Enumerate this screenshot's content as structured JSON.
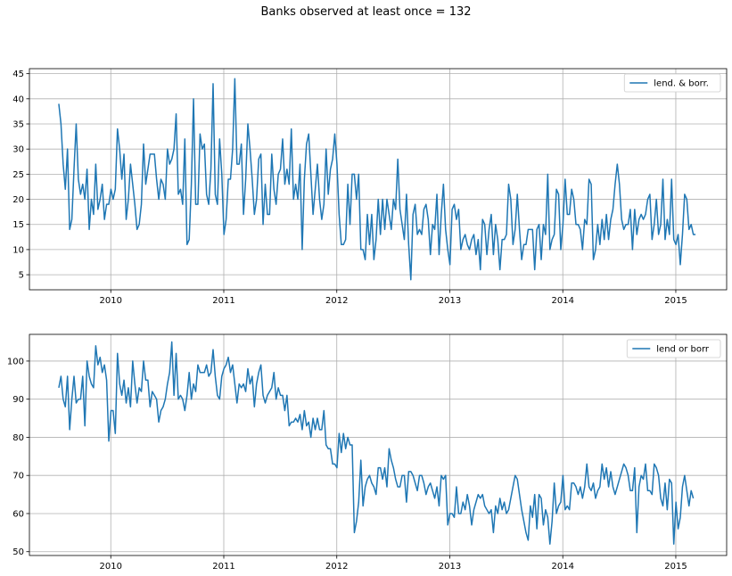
{
  "figure": {
    "suptitle": "Banks observed at least once = 132"
  },
  "colors": {
    "series": "#1f77b4"
  },
  "chart_data": [
    {
      "type": "line",
      "legend": "lend. & borr.",
      "legend_loc": "upper right",
      "grid": true,
      "x_start": 2009.54,
      "x_step": 0.01923,
      "xlim": [
        2009.28,
        2015.45
      ],
      "ylim": [
        2.0,
        46.0
      ],
      "xticks": [
        2010,
        2011,
        2012,
        2013,
        2014,
        2015
      ],
      "xtick_labels": [
        "2010",
        "2011",
        "2012",
        "2013",
        "2014",
        "2015"
      ],
      "yticks": [
        5,
        10,
        15,
        20,
        25,
        30,
        35,
        40,
        45
      ],
      "ytick_labels": [
        "5",
        "10",
        "15",
        "20",
        "25",
        "30",
        "35",
        "40",
        "45"
      ],
      "values": [
        39,
        35,
        27,
        22,
        30,
        14,
        16,
        26,
        35,
        24,
        21,
        23,
        20,
        26,
        14,
        20,
        17,
        27,
        18,
        20,
        23,
        16,
        19,
        19,
        22,
        20,
        22,
        34,
        30,
        24,
        29,
        16,
        20,
        27,
        23,
        19,
        14,
        15,
        19,
        31,
        23,
        26,
        29,
        29,
        29,
        24,
        20,
        24,
        23,
        20,
        30,
        27,
        28,
        30,
        37,
        21,
        22,
        19,
        32,
        11,
        12,
        23,
        40,
        19,
        19,
        33,
        30,
        31,
        21,
        19,
        26,
        43,
        21,
        19,
        32,
        25,
        13,
        16,
        24,
        24,
        30,
        44,
        27,
        27,
        31,
        17,
        24,
        35,
        30,
        24,
        17,
        20,
        28,
        29,
        15,
        23,
        17,
        17,
        29,
        22,
        19,
        25,
        26,
        32,
        23,
        26,
        23,
        34,
        20,
        23,
        20,
        27,
        10,
        24,
        31,
        33,
        25,
        17,
        22,
        27,
        20,
        16,
        19,
        30,
        21,
        26,
        28,
        33,
        27,
        17,
        11,
        11,
        12,
        23,
        15,
        25,
        25,
        20,
        25,
        10,
        10,
        8,
        17,
        11,
        17,
        8,
        12,
        20,
        13,
        20,
        14,
        20,
        17,
        14,
        20,
        18,
        28,
        18,
        15,
        12,
        21,
        11,
        4,
        17,
        19,
        13,
        14,
        13,
        18,
        19,
        16,
        9,
        15,
        14,
        21,
        9,
        17,
        23,
        14,
        10,
        7,
        18,
        19,
        16,
        18,
        10,
        12,
        13,
        11,
        10,
        12,
        13,
        9,
        12,
        6,
        16,
        15,
        9,
        14,
        17,
        9,
        15,
        12,
        6,
        12,
        12,
        13,
        23,
        20,
        11,
        14,
        21,
        14,
        8,
        11,
        11,
        14,
        14,
        14,
        6,
        14,
        15,
        8,
        15,
        13,
        25,
        10,
        12,
        13,
        22,
        21,
        10,
        15,
        24,
        17,
        17,
        22,
        20,
        15,
        15,
        14,
        10,
        16,
        15,
        24,
        23,
        8,
        10,
        15,
        11,
        16,
        12,
        17,
        12,
        16,
        18,
        23,
        27,
        23,
        16,
        14,
        15,
        15,
        18,
        10,
        18,
        13,
        16,
        17,
        16,
        17,
        20,
        21,
        12,
        15,
        20,
        13,
        15,
        24,
        12,
        16,
        13,
        24,
        12,
        11,
        13,
        7,
        13,
        21,
        20,
        14,
        15,
        13,
        13
      ]
    },
    {
      "type": "line",
      "legend": "lend or borr",
      "legend_loc": "upper right",
      "grid": true,
      "x_start": 2009.54,
      "x_step": 0.01923,
      "xlim": [
        2009.28,
        2015.45
      ],
      "ylim": [
        49.0,
        107.0
      ],
      "xticks": [
        2010,
        2011,
        2012,
        2013,
        2014,
        2015
      ],
      "xtick_labels": [
        "2010",
        "2011",
        "2012",
        "2013",
        "2014",
        "2015"
      ],
      "yticks": [
        50,
        60,
        70,
        80,
        90,
        100
      ],
      "ytick_labels": [
        "50",
        "60",
        "70",
        "80",
        "90",
        "100"
      ],
      "values": [
        93,
        96,
        90,
        88,
        96,
        82,
        90,
        96,
        89,
        90,
        90,
        96,
        83,
        100,
        96,
        94,
        93,
        104,
        99,
        101,
        97,
        99,
        95,
        79,
        87,
        87,
        81,
        102,
        94,
        91,
        95,
        89,
        93,
        88,
        100,
        94,
        89,
        93,
        92,
        100,
        95,
        95,
        88,
        92,
        91,
        90,
        84,
        87,
        88,
        90,
        94,
        97,
        105,
        91,
        102,
        90,
        91,
        90,
        87,
        91,
        97,
        90,
        94,
        92,
        99,
        97,
        97,
        97,
        99,
        96,
        97,
        103,
        96,
        91,
        90,
        96,
        98,
        99,
        101,
        97,
        99,
        94,
        89,
        94,
        93,
        94,
        92,
        98,
        94,
        96,
        88,
        94,
        97,
        99,
        91,
        89,
        91,
        92,
        93,
        97,
        90,
        93,
        91,
        91,
        87,
        91,
        83,
        84,
        84,
        85,
        84,
        86,
        82,
        87,
        83,
        84,
        80,
        85,
        82,
        85,
        82,
        82,
        87,
        78,
        77,
        77,
        73,
        73,
        72,
        81,
        76,
        81,
        77,
        80,
        78,
        78,
        55,
        58,
        63,
        74,
        62,
        67,
        69,
        70,
        68,
        67,
        65,
        72,
        72,
        69,
        72,
        67,
        77,
        74,
        72,
        69,
        67,
        67,
        70,
        70,
        63,
        71,
        71,
        70,
        68,
        66,
        70,
        70,
        68,
        65,
        67,
        68,
        66,
        64,
        67,
        62,
        70,
        69,
        70,
        57,
        60,
        60,
        59,
        67,
        60,
        60,
        63,
        61,
        65,
        62,
        57,
        61,
        63,
        65,
        64,
        65,
        62,
        61,
        60,
        61,
        55,
        62,
        60,
        64,
        61,
        63,
        60,
        61,
        64,
        67,
        70,
        69,
        65,
        61,
        58,
        55,
        53,
        62,
        59,
        65,
        56,
        65,
        64,
        57,
        61,
        59,
        52,
        58,
        68,
        60,
        62,
        63,
        70,
        61,
        62,
        61,
        68,
        68,
        67,
        65,
        67,
        64,
        67,
        73,
        67,
        66,
        68,
        64,
        66,
        67,
        73,
        69,
        72,
        67,
        71,
        67,
        65,
        67,
        69,
        71,
        73,
        72,
        70,
        66,
        66,
        72,
        55,
        67,
        70,
        69,
        73,
        66,
        66,
        65,
        73,
        72,
        70,
        64,
        62,
        68,
        61,
        69,
        68,
        52,
        63,
        56,
        59,
        67,
        70,
        66,
        62,
        66,
        64
      ]
    }
  ]
}
